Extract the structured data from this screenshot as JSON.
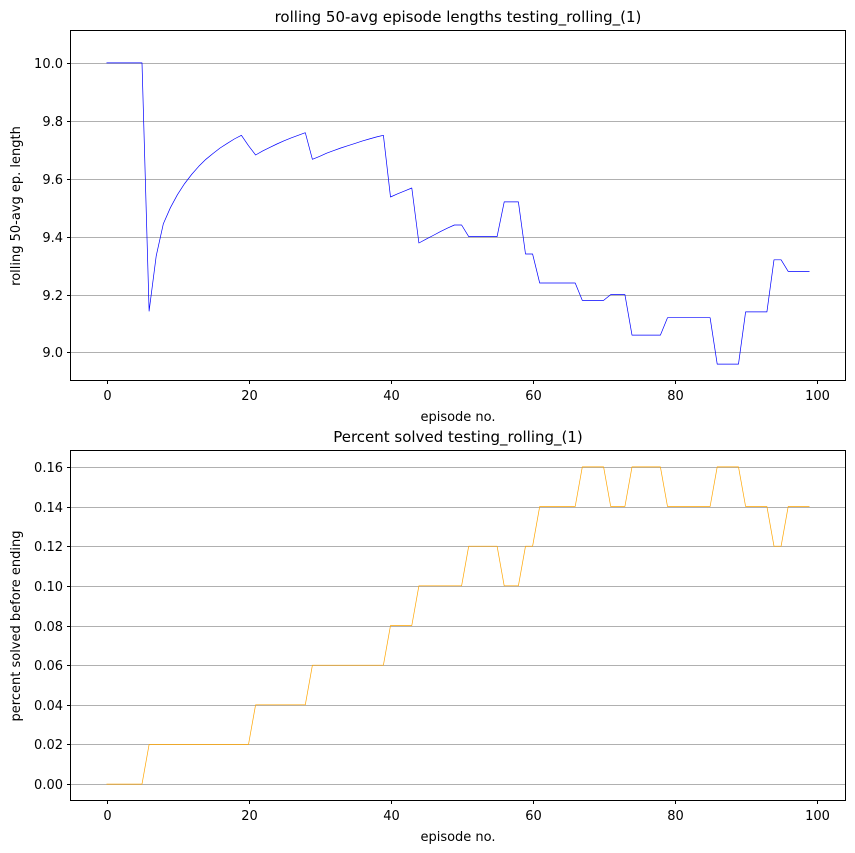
{
  "chart_data": [
    {
      "type": "line",
      "title": "rolling 50-avg episode lengths testing_rolling_(1)",
      "xlabel": "episode no.",
      "ylabel": "rolling 50-avg ep. length",
      "xlim": [
        -5,
        104
      ],
      "ylim": [
        8.905,
        10.11
      ],
      "xticks": [
        "0",
        "20",
        "40",
        "60",
        "80",
        "100"
      ],
      "yticks": [
        "9.0",
        "9.2",
        "9.4",
        "9.6",
        "9.8",
        "10.0"
      ],
      "grid": "horizontal",
      "color": "#0000ff",
      "series": [
        {
          "x": [
            0,
            1,
            2,
            3,
            4,
            5,
            6,
            7,
            8,
            9,
            10,
            11,
            12,
            13,
            14,
            15,
            16,
            17,
            18,
            19,
            20,
            21,
            22,
            23,
            24,
            25,
            26,
            27,
            28,
            29,
            30,
            31,
            32,
            33,
            34,
            35,
            36,
            37,
            38,
            39,
            40,
            41,
            42,
            43,
            44,
            45,
            46,
            47,
            48,
            49,
            50,
            51,
            52,
            53,
            54,
            55,
            56,
            57,
            58,
            59,
            60,
            61,
            62,
            63,
            64,
            65,
            66,
            67,
            68,
            69,
            70,
            71,
            72,
            73,
            74,
            75,
            76,
            77,
            78,
            79,
            80,
            81,
            82,
            83,
            84,
            85,
            86,
            87,
            88,
            89,
            90,
            91,
            92,
            93,
            94,
            95,
            96,
            97,
            98,
            99
          ],
          "values": [
            10.0,
            10.0,
            10.0,
            10.0,
            10.0,
            10.0,
            9.143,
            9.333,
            9.444,
            9.5,
            9.545,
            9.583,
            9.615,
            9.643,
            9.667,
            9.687,
            9.706,
            9.722,
            9.737,
            9.75,
            9.714,
            9.682,
            9.696,
            9.708,
            9.72,
            9.731,
            9.741,
            9.75,
            9.759,
            9.667,
            9.677,
            9.688,
            9.697,
            9.706,
            9.714,
            9.722,
            9.73,
            9.737,
            9.744,
            9.75,
            9.537,
            9.548,
            9.558,
            9.568,
            9.378,
            9.391,
            9.404,
            9.417,
            9.429,
            9.44,
            9.44,
            9.4,
            9.4,
            9.4,
            9.4,
            9.4,
            9.52,
            9.52,
            9.52,
            9.34,
            9.34,
            9.24,
            9.24,
            9.24,
            9.24,
            9.24,
            9.24,
            9.18,
            9.18,
            9.18,
            9.18,
            9.2,
            9.2,
            9.2,
            9.06,
            9.06,
            9.06,
            9.06,
            9.06,
            9.12,
            9.12,
            9.12,
            9.12,
            9.12,
            9.12,
            9.12,
            8.96,
            8.96,
            8.96,
            8.96,
            9.14,
            9.14,
            9.14,
            9.14,
            9.32,
            9.32,
            9.28,
            9.28,
            9.28,
            9.28
          ]
        }
      ]
    },
    {
      "type": "line",
      "title": "Percent solved testing_rolling_(1)",
      "xlabel": "episode no.",
      "ylabel": "percent solved before ending",
      "xlim": [
        -5,
        104
      ],
      "ylim": [
        -0.008,
        0.168
      ],
      "xticks": [
        "0",
        "20",
        "40",
        "60",
        "80",
        "100"
      ],
      "yticks": [
        "0.00",
        "0.02",
        "0.04",
        "0.06",
        "0.08",
        "0.10",
        "0.12",
        "0.14",
        "0.16"
      ],
      "grid": "horizontal",
      "color": "#ffa500",
      "series": [
        {
          "x": [
            0,
            1,
            2,
            3,
            4,
            5,
            6,
            7,
            8,
            9,
            10,
            11,
            12,
            13,
            14,
            15,
            16,
            17,
            18,
            19,
            20,
            21,
            22,
            23,
            24,
            25,
            26,
            27,
            28,
            29,
            30,
            31,
            32,
            33,
            34,
            35,
            36,
            37,
            38,
            39,
            40,
            41,
            42,
            43,
            44,
            45,
            46,
            47,
            48,
            49,
            50,
            51,
            52,
            53,
            54,
            55,
            56,
            57,
            58,
            59,
            60,
            61,
            62,
            63,
            64,
            65,
            66,
            67,
            68,
            69,
            70,
            71,
            72,
            73,
            74,
            75,
            76,
            77,
            78,
            79,
            80,
            81,
            82,
            83,
            84,
            85,
            86,
            87,
            88,
            89,
            90,
            91,
            92,
            93,
            94,
            95,
            96,
            97,
            98,
            99
          ],
          "values": [
            0,
            0,
            0,
            0,
            0,
            0,
            0.02,
            0.02,
            0.02,
            0.02,
            0.02,
            0.02,
            0.02,
            0.02,
            0.02,
            0.02,
            0.02,
            0.02,
            0.02,
            0.02,
            0.02,
            0.04,
            0.04,
            0.04,
            0.04,
            0.04,
            0.04,
            0.04,
            0.04,
            0.06,
            0.06,
            0.06,
            0.06,
            0.06,
            0.06,
            0.06,
            0.06,
            0.06,
            0.06,
            0.06,
            0.08,
            0.08,
            0.08,
            0.08,
            0.1,
            0.1,
            0.1,
            0.1,
            0.1,
            0.1,
            0.1,
            0.12,
            0.12,
            0.12,
            0.12,
            0.12,
            0.1,
            0.1,
            0.1,
            0.12,
            0.12,
            0.14,
            0.14,
            0.14,
            0.14,
            0.14,
            0.14,
            0.16,
            0.16,
            0.16,
            0.16,
            0.14,
            0.14,
            0.14,
            0.16,
            0.16,
            0.16,
            0.16,
            0.16,
            0.14,
            0.14,
            0.14,
            0.14,
            0.14,
            0.14,
            0.14,
            0.16,
            0.16,
            0.16,
            0.16,
            0.14,
            0.14,
            0.14,
            0.14,
            0.12,
            0.12,
            0.14,
            0.14,
            0.14,
            0.14
          ]
        }
      ]
    }
  ]
}
